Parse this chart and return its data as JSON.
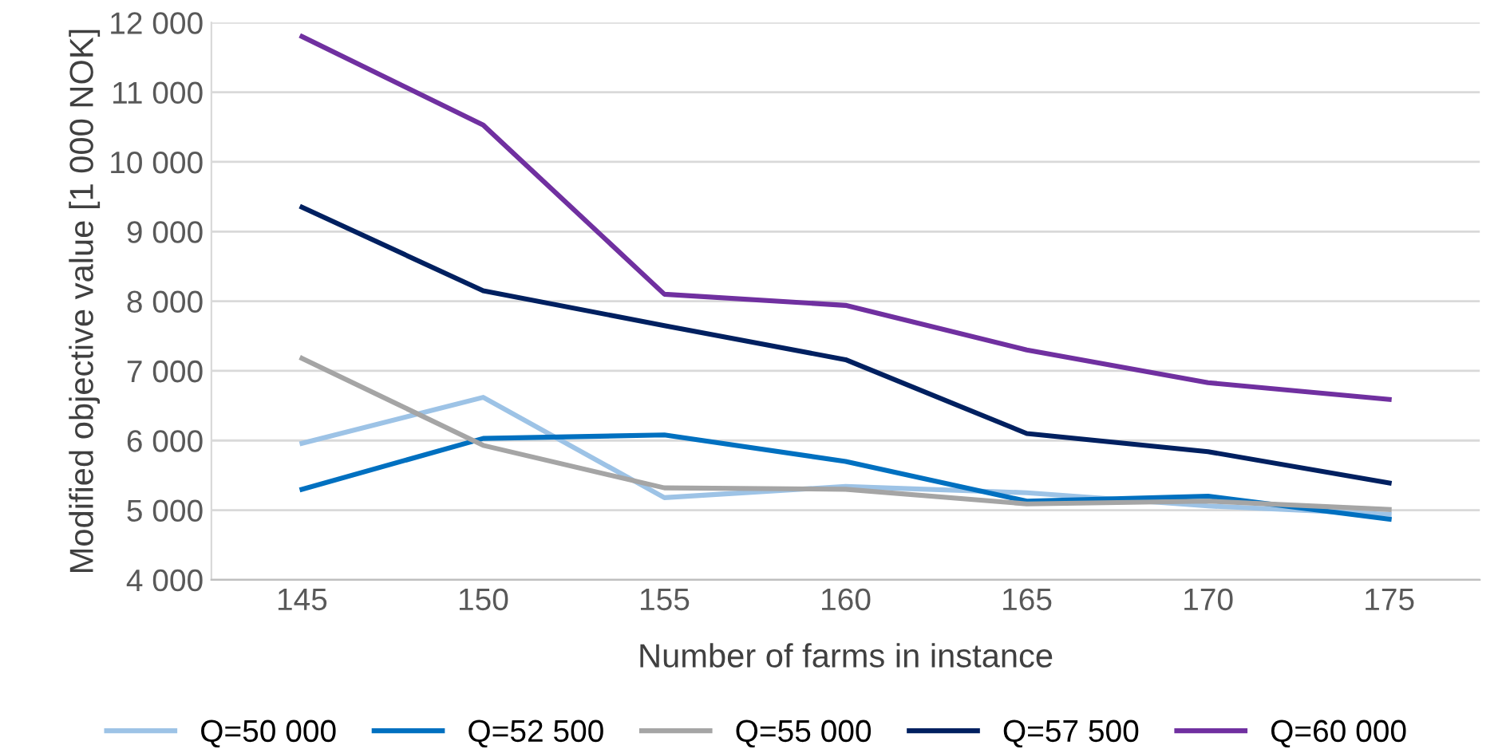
{
  "chart_data": {
    "type": "line",
    "xlabel": "Number of farms in instance",
    "ylabel": "Modified objective value [1 000 NOK]",
    "categories": [
      "145",
      "150",
      "155",
      "160",
      "165",
      "170",
      "175"
    ],
    "series": [
      {
        "name": "Q=50 000",
        "color": "#9dc3e6",
        "values": [
          5960,
          6620,
          5180,
          5340,
          5250,
          5060,
          4940
        ]
      },
      {
        "name": "Q=52 500",
        "color": "#0070c0",
        "values": [
          5300,
          6030,
          6080,
          5700,
          5130,
          5200,
          4870
        ]
      },
      {
        "name": "Q=55 000",
        "color": "#a5a5a5",
        "values": [
          7180,
          5930,
          5320,
          5300,
          5090,
          5130,
          5010
        ]
      },
      {
        "name": "Q=57 500",
        "color": "#002060",
        "values": [
          9350,
          8150,
          7650,
          7160,
          6100,
          5840,
          5390
        ]
      },
      {
        "name": "Q=60 000",
        "color": "#7030a0",
        "values": [
          11800,
          10530,
          8100,
          7940,
          7300,
          6830,
          6590
        ]
      }
    ],
    "ylim": [
      4000,
      12000
    ],
    "yticks": [
      {
        "value": 4000,
        "label": "4 000"
      },
      {
        "value": 5000,
        "label": "5 000"
      },
      {
        "value": 6000,
        "label": "6 000"
      },
      {
        "value": 7000,
        "label": "7 000"
      },
      {
        "value": 8000,
        "label": "8 000"
      },
      {
        "value": 9000,
        "label": "9 000"
      },
      {
        "value": 10000,
        "label": "10 000"
      },
      {
        "value": 11000,
        "label": "11 000"
      },
      {
        "value": 12000,
        "label": "12 000"
      }
    ],
    "grid": "y",
    "legend": "bottom",
    "marker": "none",
    "line_style": "solid"
  }
}
